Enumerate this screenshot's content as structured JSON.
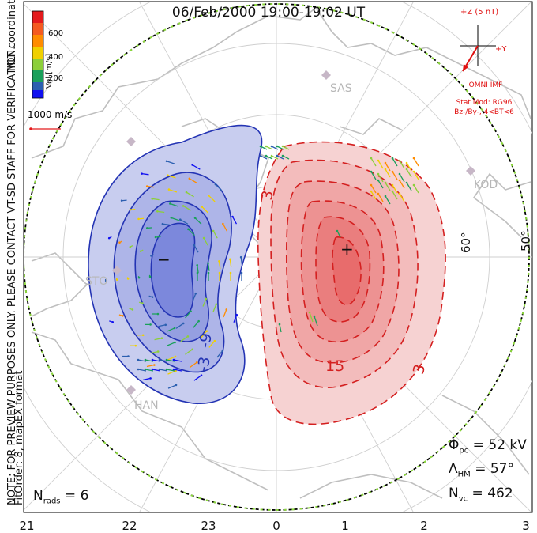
{
  "title": "06/Feb/2000 19:00-19:02 UT",
  "coordinates_label": "MLT coordinates",
  "velocity_scale": {
    "title": "Vel [m/s]",
    "ticks": [
      "600",
      "400",
      "200"
    ],
    "colors": [
      "#e41a1c",
      "#ff8c00",
      "#f0d000",
      "#8ccf3a",
      "#1aa05a",
      "#2b5fb0",
      "#1010f0"
    ]
  },
  "vector_scale_label": "1000 m/s",
  "note": "NOTE: FOR PREVIEW PURPOSES ONLY. PLEASE CONTACT VT-SD STAFF FOR VERIFICATION.",
  "fit_info": "FitOrder: 8, mapEX format",
  "imf": {
    "z_label": "+Z (5 nT)",
    "y_label": "+Y",
    "source": "OMNI IMF",
    "model_line1": "Stat Mod: RG96",
    "model_line2": "Bz-/By-, 4<BT<6"
  },
  "stats": {
    "phi_pc": "52 kV",
    "lambda_hm": "57°",
    "n_vc": "462",
    "n_rads": "6"
  },
  "mlt_labels": [
    "21",
    "22",
    "23",
    "0",
    "1",
    "2",
    "3"
  ],
  "latitude_labels": [
    "60°",
    "50°"
  ],
  "sites": [
    "SAS",
    "KOD",
    "STO",
    "HAN"
  ],
  "contour_labels": {
    "neg1": "-3",
    "neg2": "-9",
    "pos1": "3",
    "pos2": "15",
    "pos3": "3"
  },
  "cell_signs": {
    "dusk": "−",
    "dawn": "+"
  },
  "colors": {
    "dusk_cell": "#2434b4",
    "dawn_cell": "#d42020",
    "boundary": "#8ad63a"
  }
}
